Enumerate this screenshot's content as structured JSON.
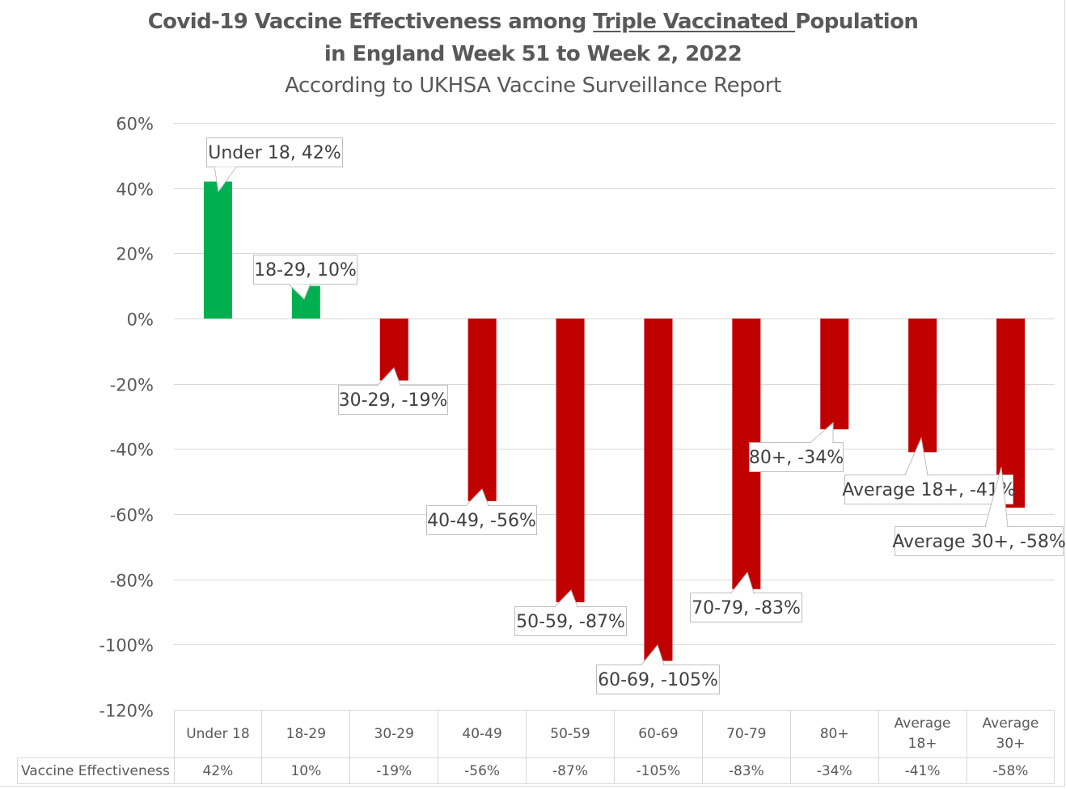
{
  "chart_data": {
    "type": "bar",
    "title_line1_prefix": "Covid-19 Vaccine Effectiveness among ",
    "title_line1_underlined": "Triple Vaccinated ",
    "title_line1_suffix": "Population",
    "title_line2": "in England Week 51 to Week 2, 2022",
    "subtitle": "According to UKHSA Vaccine Surveillance Report",
    "xlabel": "",
    "ylabel": "",
    "ylim": [
      -120,
      60
    ],
    "yticks": [
      60,
      40,
      20,
      0,
      -20,
      -40,
      -60,
      -80,
      -100,
      -120
    ],
    "ytick_labels": [
      "60%",
      "40%",
      "20%",
      "0%",
      "-20%",
      "-40%",
      "-60%",
      "-80%",
      "-100%",
      "-120%"
    ],
    "grid": true,
    "categories": [
      "Under 18",
      "18-29",
      "30-29",
      "40-49",
      "50-59",
      "60-69",
      "70-79",
      "80+",
      "Average 18+",
      "Average 30+"
    ],
    "table_header_lines": [
      [
        "Under 18"
      ],
      [
        "18-29"
      ],
      [
        "30-29"
      ],
      [
        "40-49"
      ],
      [
        "50-59"
      ],
      [
        "60-69"
      ],
      [
        "70-79"
      ],
      [
        "80+"
      ],
      [
        "Average",
        "18+"
      ],
      [
        "Average",
        "30+"
      ]
    ],
    "series": [
      {
        "name": "Vaccine Effectiveness",
        "values": [
          42,
          10,
          -19,
          -56,
          -87,
          -105,
          -83,
          -34,
          -41,
          -58
        ],
        "value_labels": [
          "42%",
          "10%",
          "-19%",
          "-56%",
          "-87%",
          "-105%",
          "-83%",
          "-34%",
          "-41%",
          "-58%"
        ],
        "data_labels": [
          "Under 18, 42%",
          "18-29, 10%",
          "30-29, -19%",
          "40-49, -56%",
          "50-59, -87%",
          "60-69, -105%",
          "70-79, -83%",
          "80+, -34%",
          "Average 18+, -41%",
          "Average 30+, -58%"
        ]
      }
    ],
    "colors": {
      "positive": "#00B050",
      "negative": "#C00000",
      "grid": "#d9d9d9",
      "text": "#595959"
    },
    "legend": "data-table-bottom"
  }
}
